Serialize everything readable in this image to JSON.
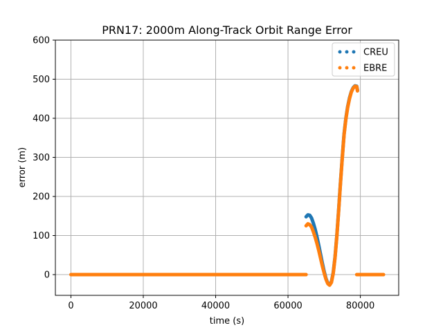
{
  "chart_data": {
    "type": "scatter",
    "title": "PRN17: 2000m Along-Track Orbit Range Error",
    "xlabel": "time (s)",
    "ylabel": "error (m)",
    "xlim": [
      -4300,
      90600
    ],
    "ylim": [
      -53,
      600
    ],
    "xticks": [
      0,
      20000,
      40000,
      60000,
      80000
    ],
    "xtick_labels": [
      "0",
      "20000",
      "40000",
      "60000",
      "80000"
    ],
    "yticks": [
      0,
      100,
      200,
      300,
      400,
      500,
      600
    ],
    "ytick_labels": [
      "0",
      "100",
      "200",
      "300",
      "400",
      "500",
      "600"
    ],
    "grid": true,
    "legend_position": "top-right",
    "series": [
      {
        "name": "CREU",
        "color": "#1f77b4",
        "segments": [
          [
            [
              65000,
              148
            ],
            [
              65500,
              153
            ],
            [
              66000,
              152
            ],
            [
              66500,
              145
            ],
            [
              67000,
              132
            ],
            [
              67500,
              116
            ],
            [
              68000,
              97
            ],
            [
              68500,
              75
            ],
            [
              69000,
              52
            ],
            [
              69500,
              29
            ],
            [
              70000,
              8
            ],
            [
              70500,
              -10
            ],
            [
              71000,
              -22
            ],
            [
              71500,
              -26
            ],
            [
              72000,
              -18
            ],
            [
              72500,
              5
            ],
            [
              73000,
              45
            ],
            [
              73500,
              100
            ],
            [
              74000,
              165
            ],
            [
              74500,
              235
            ],
            [
              75000,
              300
            ],
            [
              75500,
              360
            ],
            [
              76000,
              400
            ],
            [
              76500,
              430
            ],
            [
              77000,
              452
            ],
            [
              77500,
              468
            ],
            [
              78000,
              478
            ],
            [
              78500,
              483
            ],
            [
              79000,
              482
            ],
            [
              79200,
              472
            ]
          ]
        ]
      },
      {
        "name": "EBRE",
        "color": "#ff7f0e",
        "segments": [
          [
            [
              0,
              0
            ],
            [
              8000,
              0
            ],
            [
              16000,
              0
            ],
            [
              24000,
              0
            ],
            [
              32000,
              0
            ],
            [
              40000,
              0
            ],
            [
              48000,
              0
            ],
            [
              56000,
              0
            ],
            [
              64000,
              0
            ],
            [
              65000,
              0
            ]
          ],
          [
            [
              65000,
              125
            ],
            [
              65500,
              130
            ],
            [
              66000,
              128
            ],
            [
              66500,
              122
            ],
            [
              67000,
              110
            ],
            [
              67500,
              96
            ],
            [
              68000,
              80
            ],
            [
              68500,
              62
            ],
            [
              69000,
              42
            ],
            [
              69500,
              22
            ],
            [
              70000,
              4
            ],
            [
              70500,
              -12
            ],
            [
              71000,
              -23
            ],
            [
              71500,
              -27
            ],
            [
              72000,
              -20
            ],
            [
              72500,
              3
            ],
            [
              73000,
              43
            ],
            [
              73500,
              98
            ],
            [
              74000,
              163
            ],
            [
              74500,
              233
            ],
            [
              75000,
              298
            ],
            [
              75500,
              358
            ],
            [
              76000,
              398
            ],
            [
              76500,
              428
            ],
            [
              77000,
              450
            ],
            [
              77500,
              467
            ],
            [
              78000,
              477
            ],
            [
              78500,
              482
            ],
            [
              79000,
              481
            ],
            [
              79200,
              470
            ]
          ],
          [
            [
              79000,
              0
            ],
            [
              82000,
              0
            ],
            [
              85000,
              0
            ],
            [
              86400,
              0
            ]
          ]
        ]
      }
    ]
  }
}
